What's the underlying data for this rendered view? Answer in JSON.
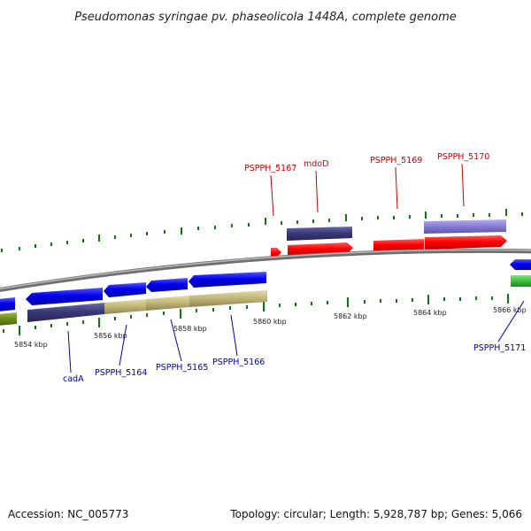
{
  "title": "Pseudomonas syringae pv. phaseolicola 1448A, complete genome",
  "footer": {
    "accession": "Accession: NC_005773",
    "summary": "Topology: circular; Length: 5,928,787 bp; Genes: 5,066"
  },
  "scale_labels": [
    "5854 kbp",
    "5856 kbp",
    "5858 kbp",
    "5860 kbp",
    "5862 kbp",
    "5864 kbp",
    "5866 kbp"
  ],
  "gene_labels_top": [
    "PSPPH_5167",
    "mdoD",
    "PSPPH_5169",
    "PSPPH_5170"
  ],
  "gene_labels_bottom": [
    "cadA",
    "PSPPH_5164",
    "PSPPH_5165",
    "PSPPH_5166",
    "PSPPH_5171"
  ],
  "colors": {
    "forward_strand_cds": "#ff0000",
    "reverse_strand_cds": "#0000ee",
    "gene_purple": "#3b3a7a",
    "gene_lavender": "#8a80d8",
    "gene_khaki": "#c2b97a",
    "gene_olive": "#6f8f1f",
    "gene_green": "#3fc43f",
    "backbone": "#8a8a8a",
    "tick": "#0a7a0a"
  }
}
